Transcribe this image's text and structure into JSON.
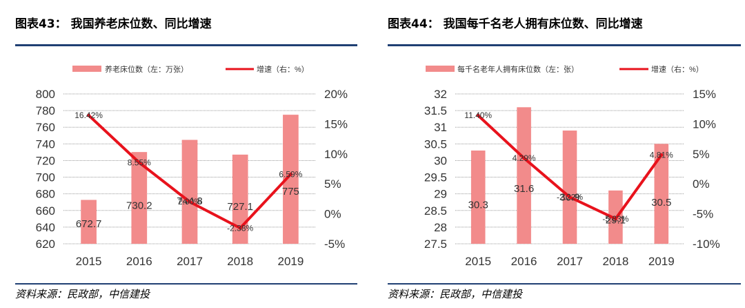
{
  "colors": {
    "bar": "#f28b8b",
    "line": "#e8121c",
    "grid": "#999999",
    "rule": "#1f3f73"
  },
  "figures": [
    {
      "title": "图表43：  我国养老床位数、同比增速",
      "source": "资料来源：民政部，中信建投",
      "chart_data": {
        "type": "bar+line",
        "categories": [
          "2015",
          "2016",
          "2017",
          "2018",
          "2019"
        ],
        "series": [
          {
            "name": "养老床位数（左：万张）",
            "type": "bar",
            "axis": "left",
            "values": [
              672.7,
              730.2,
              744.8,
              727.1,
              775
            ],
            "labels": [
              "672.7",
              "730.2",
              "744.8",
              "727.1",
              "775"
            ]
          },
          {
            "name": "增速（右：%）",
            "type": "line",
            "axis": "right",
            "values": [
              16.42,
              8.55,
              2.0,
              -2.38,
              6.59
            ],
            "labels": [
              "16.42%",
              "8.55%",
              "2.00%",
              "-2.38%",
              "6.59%"
            ]
          }
        ],
        "left_axis": {
          "min": 620,
          "max": 800,
          "step": 20,
          "ticks": [
            "620",
            "640",
            "660",
            "680",
            "700",
            "720",
            "740",
            "760",
            "780",
            "800"
          ]
        },
        "right_axis": {
          "min": -5,
          "max": 20,
          "step": 5,
          "ticks": [
            "-5%",
            "0%",
            "5%",
            "10%",
            "15%",
            "20%"
          ]
        },
        "legend_position": "top"
      }
    },
    {
      "title": "图表44：  我国每千名老人拥有床位数、同比增速",
      "source": "资料来源：民政部，中信建投",
      "chart_data": {
        "type": "bar+line",
        "categories": [
          "2015",
          "2016",
          "2017",
          "2018",
          "2019"
        ],
        "series": [
          {
            "name": "每千名老年人拥有床位数（左：张）",
            "type": "bar",
            "axis": "left",
            "values": [
              30.3,
              31.6,
              30.9,
              29.1,
              30.5
            ],
            "labels": [
              "30.3",
              "31.6",
              "30.9",
              "29.1",
              "30.5"
            ]
          },
          {
            "name": "增速（右：%）",
            "type": "line",
            "axis": "right",
            "values": [
              11.4,
              4.29,
              -2.22,
              -5.83,
              4.81
            ],
            "labels": [
              "11.40%",
              "4.29%",
              "-2.22%",
              "-5.83%",
              "4.81%"
            ]
          }
        ],
        "left_axis": {
          "min": 27.5,
          "max": 32,
          "step": 0.5,
          "ticks": [
            "27.5",
            "28",
            "28.5",
            "29",
            "29.5",
            "30",
            "30.5",
            "31",
            "31.5",
            "32"
          ]
        },
        "right_axis": {
          "min": -10,
          "max": 15,
          "step": 5,
          "ticks": [
            "-10%",
            "-5%",
            "0%",
            "5%",
            "10%",
            "15%"
          ]
        },
        "legend_position": "top"
      }
    }
  ]
}
